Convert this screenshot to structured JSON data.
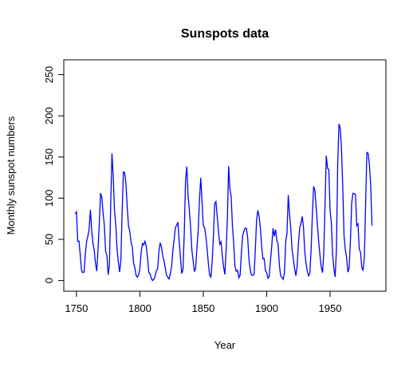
{
  "chart_data": {
    "type": "line",
    "title": "Sunspots data",
    "x_label": "Year",
    "y_label": "Monthly sunspot numbers",
    "x": [
      1749,
      1750,
      1751,
      1752,
      1753,
      1754,
      1755,
      1756,
      1757,
      1758,
      1759,
      1760,
      1761,
      1762,
      1763,
      1764,
      1765,
      1766,
      1767,
      1768,
      1769,
      1770,
      1771,
      1772,
      1773,
      1774,
      1775,
      1776,
      1777,
      1778,
      1779,
      1780,
      1781,
      1782,
      1783,
      1784,
      1785,
      1786,
      1787,
      1788,
      1789,
      1790,
      1791,
      1792,
      1793,
      1794,
      1795,
      1796,
      1797,
      1798,
      1799,
      1800,
      1801,
      1802,
      1803,
      1804,
      1805,
      1806,
      1807,
      1808,
      1809,
      1810,
      1811,
      1812,
      1813,
      1814,
      1815,
      1816,
      1817,
      1818,
      1819,
      1820,
      1821,
      1822,
      1823,
      1824,
      1825,
      1826,
      1827,
      1828,
      1829,
      1830,
      1831,
      1832,
      1833,
      1834,
      1835,
      1836,
      1837,
      1838,
      1839,
      1840,
      1841,
      1842,
      1843,
      1844,
      1845,
      1846,
      1847,
      1848,
      1849,
      1850,
      1851,
      1852,
      1853,
      1854,
      1855,
      1856,
      1857,
      1858,
      1859,
      1860,
      1861,
      1862,
      1863,
      1864,
      1865,
      1866,
      1867,
      1868,
      1869,
      1870,
      1871,
      1872,
      1873,
      1874,
      1875,
      1876,
      1877,
      1878,
      1879,
      1880,
      1881,
      1882,
      1883,
      1884,
      1885,
      1886,
      1887,
      1888,
      1889,
      1890,
      1891,
      1892,
      1893,
      1894,
      1895,
      1896,
      1897,
      1898,
      1899,
      1900,
      1901,
      1902,
      1903,
      1904,
      1905,
      1906,
      1907,
      1908,
      1909,
      1910,
      1911,
      1912,
      1913,
      1914,
      1915,
      1916,
      1917,
      1918,
      1919,
      1920,
      1921,
      1922,
      1923,
      1924,
      1925,
      1926,
      1927,
      1928,
      1929,
      1930,
      1931,
      1932,
      1933,
      1934,
      1935,
      1936,
      1937,
      1938,
      1939,
      1940,
      1941,
      1942,
      1943,
      1944,
      1945,
      1946,
      1947,
      1948,
      1949,
      1950,
      1951,
      1952,
      1953,
      1954,
      1955,
      1956,
      1957,
      1958,
      1959,
      1960,
      1961,
      1962,
      1963,
      1964,
      1965,
      1966,
      1967,
      1968,
      1969,
      1970,
      1971,
      1972,
      1973,
      1974,
      1975,
      1976,
      1977,
      1978,
      1979,
      1980,
      1981,
      1982,
      1983
    ],
    "series": [
      {
        "name": "Monthly sunspot numbers",
        "color": "#0000ff",
        "values": [
          80.9,
          83.4,
          47.7,
          47.8,
          30.7,
          12.2,
          9.6,
          10.2,
          32.4,
          47.6,
          54.0,
          62.9,
          85.9,
          61.2,
          45.1,
          36.4,
          20.9,
          11.4,
          37.8,
          69.8,
          106.1,
          100.8,
          81.6,
          66.5,
          34.8,
          30.6,
          7.0,
          19.8,
          92.5,
          154.4,
          125.9,
          84.8,
          68.1,
          38.5,
          22.8,
          10.2,
          24.1,
          82.9,
          132.0,
          130.9,
          118.1,
          89.9,
          66.6,
          60.0,
          46.9,
          41.0,
          21.3,
          16.0,
          6.4,
          4.1,
          6.8,
          14.5,
          34.0,
          45.0,
          43.1,
          47.5,
          42.2,
          28.1,
          10.1,
          8.1,
          2.5,
          0.0,
          1.4,
          5.0,
          12.2,
          13.9,
          35.4,
          45.8,
          41.1,
          30.1,
          23.9,
          15.6,
          6.6,
          4.0,
          1.8,
          8.5,
          16.6,
          36.3,
          49.6,
          64.2,
          67.0,
          70.9,
          47.8,
          27.5,
          8.5,
          13.2,
          56.9,
          121.5,
          138.3,
          103.2,
          85.7,
          64.6,
          36.7,
          24.2,
          10.7,
          15.0,
          40.1,
          61.5,
          98.5,
          124.7,
          96.3,
          66.6,
          64.5,
          54.1,
          39.0,
          20.6,
          6.7,
          4.3,
          22.7,
          54.8,
          93.8,
          95.8,
          77.2,
          59.1,
          44.0,
          47.0,
          30.5,
          16.3,
          7.3,
          37.6,
          74.0,
          139.0,
          111.2,
          101.6,
          66.2,
          44.7,
          17.0,
          11.3,
          12.4,
          3.4,
          6.0,
          32.3,
          54.3,
          59.7,
          63.7,
          63.5,
          52.2,
          25.4,
          13.1,
          6.8,
          6.3,
          7.1,
          35.6,
          73.0,
          85.1,
          78.0,
          64.0,
          41.8,
          26.2,
          26.7,
          12.1,
          9.5,
          2.7,
          5.0,
          24.4,
          42.0,
          63.5,
          53.8,
          62.0,
          48.5,
          43.9,
          18.6,
          5.7,
          3.6,
          1.4,
          9.6,
          47.4,
          57.1,
          103.9,
          80.6,
          63.6,
          37.6,
          26.1,
          14.2,
          5.8,
          16.7,
          44.3,
          63.9,
          69.0,
          77.8,
          64.9,
          35.7,
          21.2,
          11.1,
          5.7,
          8.7,
          36.1,
          79.7,
          114.4,
          109.6,
          88.8,
          67.8,
          47.5,
          30.6,
          16.3,
          9.6,
          33.2,
          92.6,
          151.6,
          136.3,
          134.7,
          83.9,
          69.4,
          31.5,
          13.9,
          4.4,
          38.0,
          141.7,
          190.2,
          184.8,
          159.0,
          112.3,
          53.9,
          37.5,
          27.9,
          10.2,
          15.1,
          47.0,
          93.8,
          105.9,
          105.5,
          104.5,
          66.6,
          68.9,
          38.0,
          34.5,
          15.5,
          12.6,
          27.5,
          92.5,
          155.4,
          154.6,
          140.4,
          115.9,
          66.6
        ]
      }
    ],
    "xlim": [
      1740,
      1994
    ],
    "ylim": [
      -13,
      268
    ],
    "xticks": [
      1750,
      1800,
      1850,
      1900,
      1950
    ],
    "yticks": [
      0,
      50,
      100,
      150,
      200,
      250
    ]
  }
}
